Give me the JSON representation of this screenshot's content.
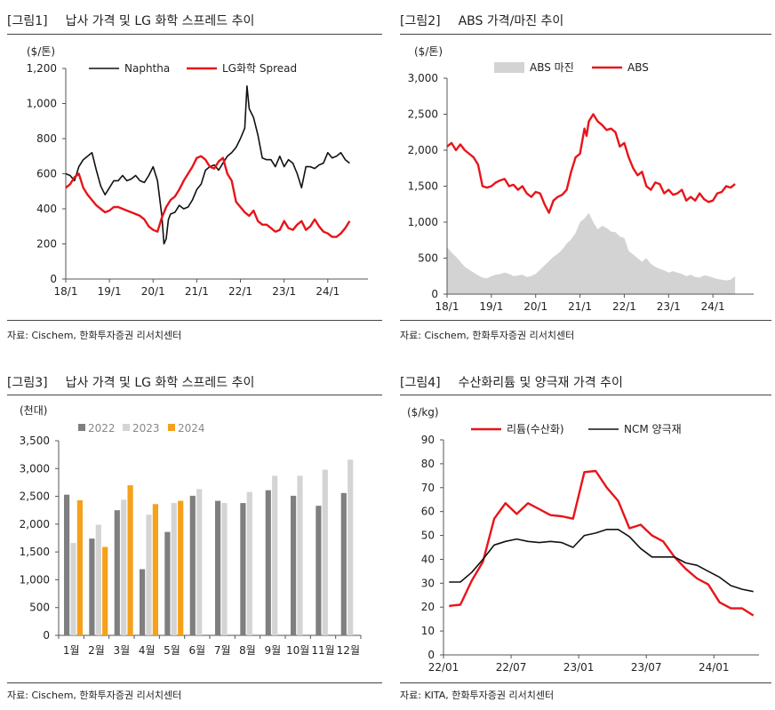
{
  "charts": [
    {
      "label": "[그림1]",
      "heading": "납사 가격 및 LG 화학 스프레드 추이",
      "source": "자료: Cischem, 한화투자증권 리서치센터",
      "unit": "($/톤)",
      "chart_data": {
        "type": "line",
        "title": "납사 가격 및 LG 화학 스프레드 추이",
        "ylabel": "($/톤)",
        "ylim": [
          0,
          1200
        ],
        "yticks": [
          0,
          200,
          400,
          600,
          800,
          1000,
          1200
        ],
        "ytick_labels": [
          "0",
          "200",
          "400",
          "600",
          "800",
          "1,000",
          "1,200"
        ],
        "xlim": [
          2018.0,
          2024.92
        ],
        "xticks": [
          2018,
          2019,
          2020,
          2021,
          2022,
          2023,
          2024
        ],
        "xtick_labels": [
          "18/1",
          "19/1",
          "20/1",
          "21/1",
          "22/1",
          "23/1",
          "24/1"
        ],
        "legend_position": "top-left",
        "grid": false,
        "series": [
          {
            "name": "Naphtha",
            "color": "#111111",
            "x": [
              2018.0,
              2018.1,
              2018.2,
              2018.3,
              2018.4,
              2018.5,
              2018.6,
              2018.7,
              2018.8,
              2018.9,
              2019.0,
              2019.1,
              2019.2,
              2019.3,
              2019.4,
              2019.5,
              2019.6,
              2019.7,
              2019.8,
              2019.9,
              2020.0,
              2020.1,
              2020.2,
              2020.25,
              2020.3,
              2020.35,
              2020.4,
              2020.5,
              2020.6,
              2020.7,
              2020.8,
              2020.9,
              2021.0,
              2021.1,
              2021.2,
              2021.3,
              2021.4,
              2021.5,
              2021.6,
              2021.7,
              2021.8,
              2021.9,
              2022.0,
              2022.1,
              2022.15,
              2022.2,
              2022.3,
              2022.4,
              2022.5,
              2022.6,
              2022.7,
              2022.8,
              2022.9,
              2023.0,
              2023.1,
              2023.2,
              2023.3,
              2023.4,
              2023.5,
              2023.6,
              2023.7,
              2023.8,
              2023.9,
              2024.0,
              2024.1,
              2024.2,
              2024.3,
              2024.4,
              2024.5
            ],
            "values": [
              600,
              590,
              560,
              640,
              680,
              700,
              720,
              620,
              530,
              480,
              520,
              560,
              560,
              590,
              560,
              570,
              590,
              560,
              550,
              590,
              640,
              560,
              360,
              200,
              230,
              340,
              370,
              380,
              420,
              400,
              410,
              450,
              510,
              540,
              620,
              640,
              650,
              620,
              660,
              700,
              720,
              750,
              800,
              860,
              1100,
              970,
              920,
              820,
              690,
              680,
              680,
              640,
              700,
              640,
              680,
              660,
              600,
              520,
              640,
              640,
              630,
              650,
              660,
              720,
              690,
              700,
              720,
              680,
              660
            ]
          },
          {
            "name": "LG화학 Spread",
            "color": "#e8141a",
            "x": [
              2018.0,
              2018.1,
              2018.2,
              2018.3,
              2018.4,
              2018.5,
              2018.6,
              2018.7,
              2018.8,
              2018.9,
              2019.0,
              2019.1,
              2019.2,
              2019.3,
              2019.4,
              2019.5,
              2019.6,
              2019.7,
              2019.8,
              2019.9,
              2020.0,
              2020.1,
              2020.2,
              2020.3,
              2020.4,
              2020.5,
              2020.6,
              2020.7,
              2020.8,
              2020.9,
              2021.0,
              2021.1,
              2021.2,
              2021.3,
              2021.4,
              2021.5,
              2021.6,
              2021.7,
              2021.8,
              2021.9,
              2022.0,
              2022.1,
              2022.2,
              2022.3,
              2022.4,
              2022.5,
              2022.6,
              2022.7,
              2022.8,
              2022.9,
              2023.0,
              2023.1,
              2023.2,
              2023.3,
              2023.4,
              2023.5,
              2023.6,
              2023.7,
              2023.8,
              2023.9,
              2024.0,
              2024.1,
              2024.2,
              2024.3,
              2024.4,
              2024.5
            ],
            "values": [
              520,
              540,
              580,
              600,
              520,
              480,
              450,
              420,
              400,
              380,
              390,
              410,
              410,
              400,
              390,
              380,
              370,
              360,
              340,
              300,
              280,
              270,
              350,
              410,
              450,
              470,
              510,
              560,
              600,
              640,
              690,
              700,
              680,
              640,
              630,
              670,
              690,
              600,
              560,
              440,
              410,
              380,
              360,
              390,
              330,
              310,
              310,
              290,
              270,
              280,
              330,
              290,
              280,
              310,
              330,
              280,
              300,
              340,
              300,
              270,
              260,
              240,
              240,
              260,
              290,
              330
            ]
          }
        ]
      }
    },
    {
      "label": "[그림2]",
      "heading": "ABS 가격/마진 추이",
      "source": "자료: Cischem, 한화투자증권 리서치센터",
      "unit": "($/톤)",
      "chart_data": {
        "type": "area",
        "title": "ABS 가격/마진 추이",
        "ylabel": "($/톤)",
        "ylim": [
          0,
          3000
        ],
        "yticks": [
          0,
          500,
          1000,
          1500,
          2000,
          2500,
          3000
        ],
        "ytick_labels": [
          "0",
          "500",
          "1,000",
          "1,500",
          "2,000",
          "2,500",
          "3,000"
        ],
        "xlim": [
          2018.0,
          2024.92
        ],
        "xticks": [
          2018,
          2019,
          2020,
          2021,
          2022,
          2023,
          2024
        ],
        "xtick_labels": [
          "18/1",
          "19/1",
          "20/1",
          "21/1",
          "22/1",
          "23/1",
          "24/1"
        ],
        "legend_position": "top-left",
        "grid": false,
        "series": [
          {
            "name": "ABS 마진",
            "kind": "area",
            "color": "#d3d3d3",
            "x": [
              2018.0,
              2018.1,
              2018.2,
              2018.3,
              2018.4,
              2018.5,
              2018.6,
              2018.7,
              2018.8,
              2018.9,
              2019.0,
              2019.1,
              2019.2,
              2019.3,
              2019.4,
              2019.5,
              2019.6,
              2019.7,
              2019.8,
              2019.9,
              2020.0,
              2020.1,
              2020.2,
              2020.3,
              2020.4,
              2020.5,
              2020.6,
              2020.7,
              2020.8,
              2020.9,
              2021.0,
              2021.1,
              2021.2,
              2021.3,
              2021.4,
              2021.5,
              2021.6,
              2021.7,
              2021.8,
              2021.9,
              2022.0,
              2022.1,
              2022.2,
              2022.3,
              2022.4,
              2022.5,
              2022.6,
              2022.7,
              2022.8,
              2022.9,
              2023.0,
              2023.1,
              2023.2,
              2023.3,
              2023.4,
              2023.5,
              2023.6,
              2023.7,
              2023.8,
              2023.9,
              2024.0,
              2024.1,
              2024.2,
              2024.3,
              2024.4,
              2024.5
            ],
            "values": [
              650,
              580,
              520,
              450,
              380,
              340,
              300,
              260,
              230,
              220,
              250,
              270,
              280,
              300,
              280,
              250,
              260,
              270,
              240,
              250,
              280,
              340,
              400,
              460,
              520,
              560,
              620,
              700,
              760,
              850,
              1000,
              1050,
              1130,
              1000,
              900,
              950,
              920,
              870,
              860,
              800,
              780,
              600,
              550,
              500,
              450,
              500,
              420,
              380,
              350,
              330,
              300,
              320,
              300,
              280,
              250,
              270,
              240,
              230,
              260,
              250,
              230,
              210,
              200,
              190,
              200,
              250
            ]
          },
          {
            "name": "ABS",
            "kind": "line",
            "color": "#e8141a",
            "x": [
              2018.0,
              2018.1,
              2018.2,
              2018.3,
              2018.4,
              2018.5,
              2018.6,
              2018.7,
              2018.8,
              2018.9,
              2019.0,
              2019.1,
              2019.2,
              2019.3,
              2019.4,
              2019.5,
              2019.6,
              2019.7,
              2019.8,
              2019.9,
              2020.0,
              2020.1,
              2020.2,
              2020.3,
              2020.4,
              2020.5,
              2020.6,
              2020.7,
              2020.8,
              2020.9,
              2021.0,
              2021.1,
              2021.15,
              2021.2,
              2021.3,
              2021.4,
              2021.5,
              2021.6,
              2021.7,
              2021.8,
              2021.9,
              2022.0,
              2022.1,
              2022.2,
              2022.3,
              2022.4,
              2022.5,
              2022.6,
              2022.7,
              2022.8,
              2022.9,
              2023.0,
              2023.1,
              2023.2,
              2023.3,
              2023.4,
              2023.5,
              2023.6,
              2023.7,
              2023.8,
              2023.9,
              2024.0,
              2024.1,
              2024.2,
              2024.3,
              2024.4,
              2024.5
            ],
            "values": [
              2050,
              2100,
              2000,
              2080,
              2000,
              1950,
              1900,
              1800,
              1500,
              1480,
              1500,
              1550,
              1580,
              1600,
              1500,
              1520,
              1450,
              1500,
              1400,
              1350,
              1420,
              1400,
              1250,
              1130,
              1300,
              1350,
              1380,
              1450,
              1700,
              1900,
              1950,
              2300,
              2200,
              2400,
              2500,
              2400,
              2350,
              2280,
              2300,
              2250,
              2050,
              2100,
              1900,
              1750,
              1650,
              1700,
              1500,
              1450,
              1550,
              1530,
              1400,
              1450,
              1380,
              1400,
              1450,
              1300,
              1350,
              1300,
              1400,
              1320,
              1280,
              1300,
              1400,
              1420,
              1500,
              1480,
              1530
            ]
          }
        ]
      }
    },
    {
      "label": "[그림3]",
      "heading": "납사 가격 및 LG 화학 스프레드 추이",
      "source": "자료: Cischem, 한화투자증권 리서치센터",
      "unit": "(천대)",
      "chart_data": {
        "type": "bar",
        "title": "납사 가격 및 LG 화학 스프레드 추이",
        "ylabel": "(천대)",
        "ylim": [
          0,
          3500
        ],
        "yticks": [
          0,
          500,
          1000,
          1500,
          2000,
          2500,
          3000,
          3500
        ],
        "ytick_labels": [
          "0",
          "500",
          "1,000",
          "1,500",
          "2,000",
          "2,500",
          "3,000",
          "3,500"
        ],
        "categories": [
          "1월",
          "2월",
          "3월",
          "4월",
          "5월",
          "6월",
          "7월",
          "8월",
          "9월",
          "10월",
          "11월",
          "12월"
        ],
        "legend_position": "top",
        "grid": false,
        "series": [
          {
            "name": "2022",
            "color": "#7f7f7f",
            "values": [
              2530,
              1740,
              2250,
              1190,
              1860,
              2510,
              2420,
              2380,
              2610,
              2510,
              2330,
              2560
            ]
          },
          {
            "name": "2023",
            "color": "#d4d4d4",
            "values": [
              1660,
              1990,
              2440,
              2170,
              2380,
              2630,
              2380,
              2580,
              2870,
              2870,
              2980,
              3160
            ]
          },
          {
            "name": "2024",
            "color": "#f4a11b",
            "values": [
              2430,
              1590,
              2700,
              2360,
              2420,
              null,
              null,
              null,
              null,
              null,
              null,
              null
            ]
          }
        ]
      }
    },
    {
      "label": "[그림4]",
      "heading": "수산화리튬 및 양극재 가격 추이",
      "source": "자료: KITA, 한화투자증권 리서치센터",
      "unit": "($/kg)",
      "chart_data": {
        "type": "line",
        "title": "수산화리튬 및 양극재 가격 추이",
        "ylabel": "($/kg)",
        "ylim": [
          0,
          90
        ],
        "yticks": [
          0,
          10,
          20,
          30,
          40,
          50,
          60,
          70,
          80,
          90
        ],
        "ytick_labels": [
          "0",
          "10",
          "20",
          "30",
          "40",
          "50",
          "60",
          "70",
          "80",
          "90"
        ],
        "xlim": [
          0,
          28
        ],
        "xticks": [
          0,
          6,
          12,
          18,
          24
        ],
        "xtick_labels": [
          "22/01",
          "22/07",
          "23/01",
          "23/07",
          "24/01"
        ],
        "legend_position": "top",
        "grid": false,
        "series": [
          {
            "name": "리튬(수산화)",
            "color": "#e8141a",
            "x": [
              0.5,
              1.5,
              2.5,
              3.5,
              4.5,
              5.5,
              6.5,
              7.5,
              8.5,
              9.5,
              10.5,
              11.5,
              12.5,
              13.5,
              14.5,
              15.5,
              16.5,
              17.5,
              18.5,
              19.5,
              20.5,
              21.5,
              22.5,
              23.5,
              24.5,
              25.5,
              26.5,
              27.5
            ],
            "values": [
              20.5,
              21,
              31,
              39,
              57,
              63.5,
              59,
              63.5,
              61,
              58.5,
              58,
              57,
              76.5,
              77,
              70,
              64.5,
              53,
              54.5,
              50,
              47.5,
              41,
              36,
              32,
              29.5,
              22,
              19.5,
              19.5,
              16.5
            ]
          },
          {
            "name": "NCM 양극재",
            "color": "#111111",
            "x": [
              0.5,
              1.5,
              2.5,
              3.5,
              4.5,
              5.5,
              6.5,
              7.5,
              8.5,
              9.5,
              10.5,
              11.5,
              12.5,
              13.5,
              14.5,
              15.5,
              16.5,
              17.5,
              18.5,
              19.5,
              20.5,
              21.5,
              22.5,
              23.5,
              24.5,
              25.5,
              26.5,
              27.5
            ],
            "values": [
              30.5,
              30.5,
              34.5,
              40,
              46,
              47.5,
              48.5,
              47.5,
              47,
              47.5,
              47,
              45,
              50,
              51,
              52.5,
              52.5,
              49.5,
              44.5,
              41,
              41,
              41,
              38.5,
              37.5,
              35,
              32.5,
              29,
              27.5,
              26.5
            ]
          }
        ]
      }
    }
  ]
}
